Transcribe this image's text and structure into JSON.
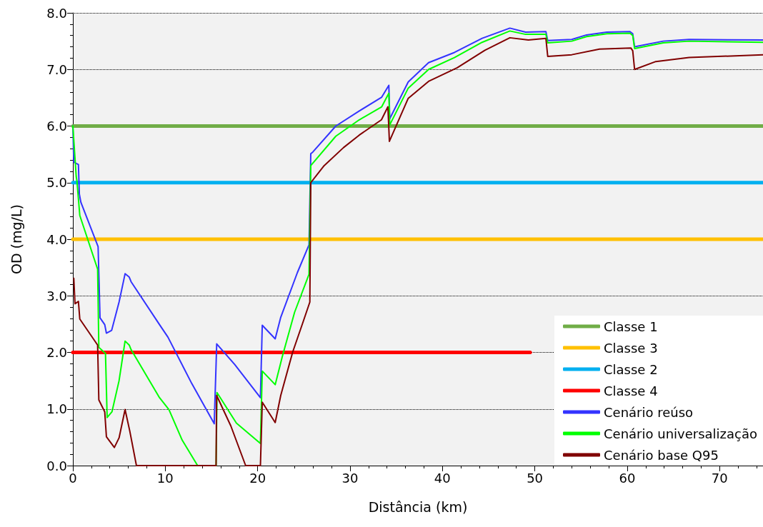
{
  "chart_data": {
    "type": "line",
    "xlabel": "Distância (km)",
    "ylabel": "OD (mg/L)",
    "xlim": [
      0,
      74.7
    ],
    "xticks": [
      0,
      10,
      20,
      30,
      40,
      50,
      60,
      70
    ],
    "ylim": [
      0,
      8
    ],
    "yticks": [
      {
        "value": 0,
        "label": "0.0"
      },
      {
        "value": 1,
        "label": "1.0"
      },
      {
        "value": 2,
        "label": "2.0"
      },
      {
        "value": 3,
        "label": "3.0"
      },
      {
        "value": 4,
        "label": "4.0"
      },
      {
        "value": 5,
        "label": "5.0"
      },
      {
        "value": 6,
        "label": "6.0"
      },
      {
        "value": 7,
        "label": "7.0"
      },
      {
        "value": 8,
        "label": "8.0"
      }
    ],
    "grid": "y",
    "legend": "bottom right",
    "marker": "none",
    "line_style": "solid",
    "series": [
      {
        "name": "Classe 1",
        "color": "#70ad47",
        "x": [
          0,
          74.7
        ],
        "values": [
          6,
          6
        ]
      },
      {
        "name": "Classe 3",
        "color": "#ffc000",
        "x": [
          0,
          74.7
        ],
        "values": [
          4,
          4
        ]
      },
      {
        "name": "Classe 2",
        "color": "#00b0f0",
        "x": [
          0,
          74.7
        ],
        "values": [
          5,
          5
        ]
      },
      {
        "name": "Classe 4",
        "color": "#ff0000",
        "x": [
          0,
          49.5
        ],
        "values": [
          2,
          2
        ]
      },
      {
        "name": "Cenário reúso",
        "color": "#3333ff",
        "x": [
          0,
          0.1,
          0.6,
          0.7,
          0.87,
          2.73,
          2.94,
          3.45,
          3.63,
          4.2,
          5.0,
          5.65,
          6.1,
          6.3,
          9.38,
          10.29,
          12.87,
          15.3,
          15.57,
          17.5,
          20.3,
          20.5,
          21.9,
          22.5,
          24.3,
          25.56,
          25.75,
          25.97,
          28.46,
          30.94,
          33.43,
          34.2,
          34.3,
          36.3,
          38.5,
          41.3,
          44.3,
          47.3,
          49.0,
          51.2,
          51.4,
          54.0,
          55.6,
          57.8,
          60.3,
          60.6,
          60.8,
          63.9,
          66.7,
          74.7
        ],
        "values": [
          6.0,
          5.36,
          5.32,
          4.8,
          4.65,
          3.87,
          2.61,
          2.49,
          2.34,
          2.39,
          2.89,
          3.39,
          3.33,
          3.25,
          2.49,
          2.27,
          1.45,
          0.74,
          2.15,
          1.79,
          1.2,
          2.48,
          2.24,
          2.62,
          3.41,
          3.9,
          5.51,
          5.54,
          6.0,
          6.26,
          6.51,
          6.72,
          6.13,
          6.78,
          7.12,
          7.3,
          7.55,
          7.73,
          7.66,
          7.67,
          7.51,
          7.53,
          7.61,
          7.66,
          7.67,
          7.63,
          7.4,
          7.5,
          7.53,
          7.52
        ]
      },
      {
        "name": "Cenário universalização",
        "color": "#00ff00",
        "x": [
          0,
          0.36,
          0.44,
          0.75,
          2.68,
          2.81,
          3.53,
          3.71,
          4.23,
          5.0,
          5.65,
          6.1,
          6.3,
          9.38,
          10.4,
          11.83,
          13.5,
          15.5,
          15.6,
          17.7,
          20.3,
          20.5,
          21.9,
          22.66,
          24.0,
          25.56,
          25.75,
          28.46,
          31.0,
          33.43,
          34.2,
          34.3,
          36.3,
          38.5,
          41.3,
          44.3,
          47.3,
          49.0,
          51.2,
          51.4,
          54.0,
          55.6,
          57.8,
          60.3,
          60.6,
          60.8,
          63.9,
          66.7,
          74.7
        ],
        "values": [
          6.0,
          5.11,
          5.03,
          4.42,
          3.47,
          2.09,
          1.98,
          0.85,
          0.95,
          1.5,
          2.2,
          2.13,
          2.05,
          1.2,
          0.99,
          0.45,
          0,
          0,
          1.29,
          0.75,
          0.39,
          1.67,
          1.43,
          1.92,
          2.71,
          3.38,
          5.3,
          5.82,
          6.11,
          6.34,
          6.58,
          6.02,
          6.67,
          7.0,
          7.21,
          7.48,
          7.68,
          7.62,
          7.62,
          7.47,
          7.5,
          7.58,
          7.63,
          7.64,
          7.6,
          7.37,
          7.47,
          7.5,
          7.48
        ]
      },
      {
        "name": "Cenário base Q95",
        "color": "#800000",
        "x": [
          0.1,
          0.23,
          0.6,
          0.75,
          2.68,
          2.81,
          3.45,
          3.63,
          4.49,
          5.0,
          5.65,
          6.16,
          6.88,
          15.5,
          15.56,
          17.1,
          18.7,
          20.3,
          20.5,
          21.9,
          22.5,
          23.8,
          24.9,
          25.65,
          25.75,
          27.2,
          29.3,
          31.0,
          33.4,
          34.1,
          34.26,
          36.3,
          38.5,
          41.6,
          44.6,
          47.3,
          49.3,
          51.2,
          51.4,
          54.0,
          57.0,
          60.4,
          60.6,
          60.8,
          63.1,
          66.7,
          74.7
        ],
        "values": [
          3.31,
          2.86,
          2.9,
          2.59,
          2.13,
          1.16,
          0.95,
          0.51,
          0.32,
          0.49,
          0.99,
          0.61,
          0,
          0,
          1.24,
          0.7,
          0,
          0,
          1.12,
          0.76,
          1.24,
          2.01,
          2.53,
          2.89,
          5.0,
          5.3,
          5.62,
          5.84,
          6.11,
          6.34,
          5.73,
          6.49,
          6.79,
          7.03,
          7.34,
          7.56,
          7.52,
          7.55,
          7.23,
          7.26,
          7.36,
          7.38,
          7.33,
          7.0,
          7.14,
          7.21,
          7.26
        ]
      }
    ]
  }
}
